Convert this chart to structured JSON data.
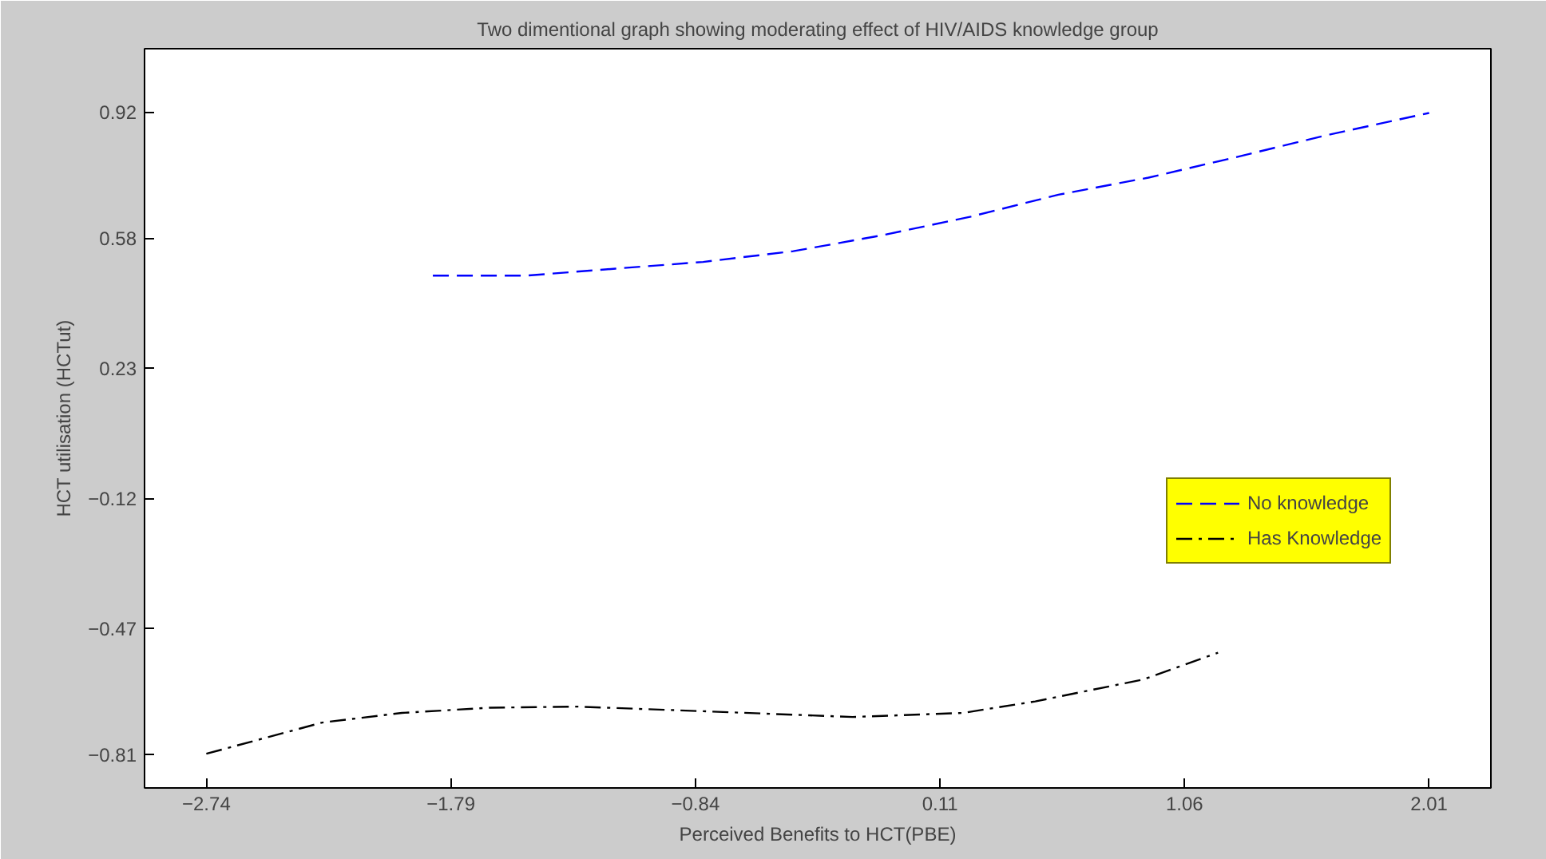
{
  "chart_data": {
    "type": "line",
    "title": "Two dimentional graph showing moderating effect of HIV/AIDS knowledge group",
    "xlabel": "Perceived Benefits to HCT(PBE)",
    "ylabel": "HCT utilisation (HCTut)",
    "xlim": [
      -2.98,
      2.25
    ],
    "xticks": [
      -2.74,
      -1.79,
      -0.84,
      0.11,
      1.06,
      2.01
    ],
    "ylim": [
      -0.9,
      1.09
    ],
    "yticks": [
      -0.81,
      -0.47,
      -0.12,
      0.23,
      0.58,
      0.92
    ],
    "grid": false,
    "legend": "right",
    "marker": "none",
    "series": [
      {
        "name": "No knowledge",
        "color": "#0000ff",
        "line_style": "dashed",
        "x": [
          -1.86,
          -1.5,
          -1.15,
          -0.81,
          -0.46,
          -0.12,
          0.23,
          0.57,
          0.92,
          1.26,
          1.61,
          2.01
        ],
        "values": [
          0.479,
          0.479,
          0.498,
          0.516,
          0.545,
          0.587,
          0.638,
          0.697,
          0.743,
          0.798,
          0.857,
          0.917
        ]
      },
      {
        "name": "Has Knowledge",
        "color": "#000000",
        "line_style": "dashdot",
        "x": [
          -2.74,
          -2.29,
          -1.98,
          -1.64,
          -1.3,
          -0.79,
          -0.23,
          0.2,
          0.48,
          0.9,
          1.19
        ],
        "values": [
          -0.808,
          -0.724,
          -0.698,
          -0.684,
          -0.681,
          -0.694,
          -0.709,
          -0.698,
          -0.667,
          -0.608,
          -0.536
        ]
      }
    ]
  }
}
